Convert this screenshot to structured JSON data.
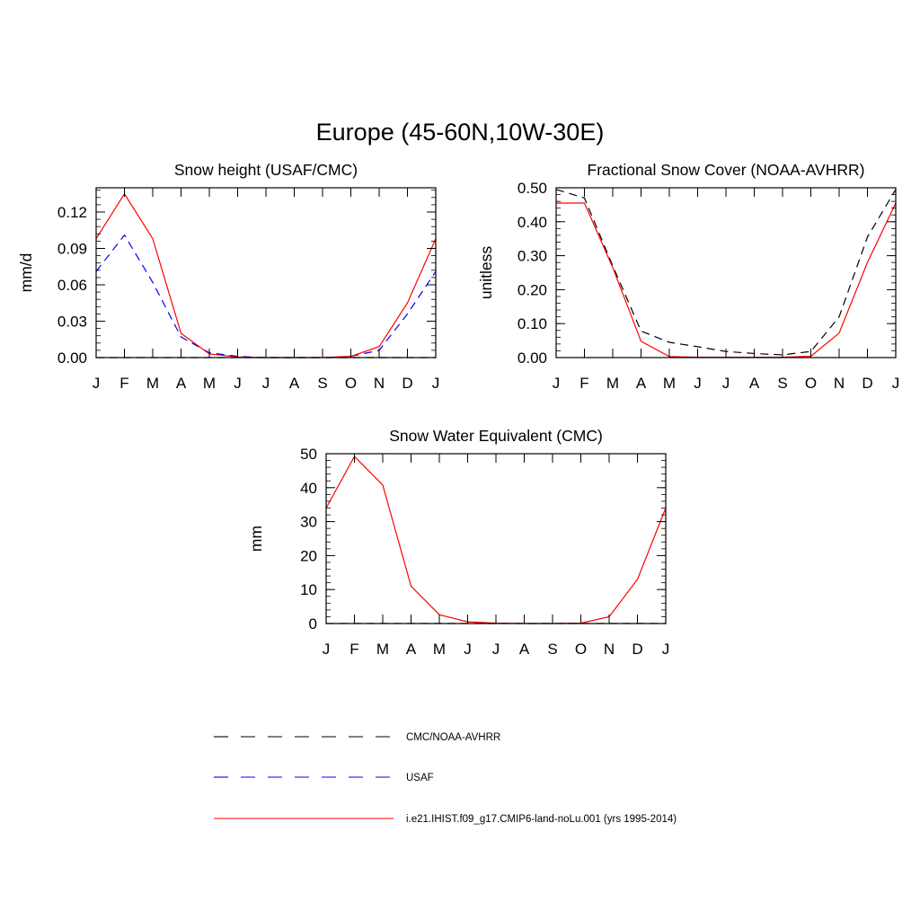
{
  "figure": {
    "title": "Europe (45-60N,10W-30E)"
  },
  "chart_data": [
    {
      "type": "line",
      "title": "Snow height (USAF/CMC)",
      "xlabel": "",
      "ylabel": "mm/d",
      "categories": [
        "J",
        "F",
        "M",
        "A",
        "M",
        "J",
        "J",
        "A",
        "S",
        "O",
        "N",
        "D",
        "J"
      ],
      "ylim": [
        0,
        0.14
      ],
      "yticks": [
        0.0,
        0.03,
        0.06,
        0.09,
        0.12
      ],
      "ytick_labels": [
        "0.00",
        "0.03",
        "0.06",
        "0.09",
        "0.12"
      ],
      "series": [
        {
          "name": "CMC/NOAA-AVHRR",
          "color": "#000000",
          "dash": "dashed",
          "values": [
            0,
            0,
            0,
            0,
            0,
            0,
            0,
            0,
            0,
            0,
            0,
            0,
            0
          ]
        },
        {
          "name": "USAF",
          "color": "#0000ff",
          "dash": "dashed",
          "values": [
            0.071,
            0.101,
            0.062,
            0.017,
            0.004,
            0.001,
            0,
            0,
            0,
            0.001,
            0.006,
            0.036,
            0.071
          ]
        },
        {
          "name": "i.e21.IHIST.f09_g17.CMIP6-land-noLu.001 (yrs 1995-2014)",
          "color": "#ff0000",
          "dash": "solid",
          "values": [
            0.098,
            0.135,
            0.098,
            0.02,
            0.003,
            0.0005,
            0,
            0,
            0,
            0.001,
            0.009,
            0.045,
            0.098
          ]
        }
      ]
    },
    {
      "type": "line",
      "title": "Fractional Snow Cover (NOAA-AVHRR)",
      "xlabel": "",
      "ylabel": "unitless",
      "categories": [
        "J",
        "F",
        "M",
        "A",
        "M",
        "J",
        "J",
        "A",
        "S",
        "O",
        "N",
        "D",
        "J"
      ],
      "ylim": [
        0,
        0.5
      ],
      "yticks": [
        0.0,
        0.1,
        0.2,
        0.3,
        0.4,
        0.5
      ],
      "ytick_labels": [
        "0.00",
        "0.10",
        "0.20",
        "0.30",
        "0.40",
        "0.50"
      ],
      "series": [
        {
          "name": "CMC/NOAA-AVHRR",
          "color": "#000000",
          "dash": "dashed",
          "values": [
            0.495,
            0.47,
            0.27,
            0.078,
            0.045,
            0.032,
            0.018,
            0.012,
            0.008,
            0.018,
            0.12,
            0.355,
            0.495
          ]
        },
        {
          "name": "i.e21.IHIST.f09_g17.CMIP6-land-noLu.001 (yrs 1995-2014)",
          "color": "#ff0000",
          "dash": "solid",
          "values": [
            0.455,
            0.455,
            0.265,
            0.048,
            0.003,
            0.001,
            0.001,
            0.001,
            0.001,
            0.004,
            0.072,
            0.28,
            0.455
          ]
        }
      ]
    },
    {
      "type": "line",
      "title": "Snow Water Equivalent (CMC)",
      "xlabel": "",
      "ylabel": "mm",
      "categories": [
        "J",
        "F",
        "M",
        "A",
        "M",
        "J",
        "J",
        "A",
        "S",
        "O",
        "N",
        "D",
        "J"
      ],
      "ylim": [
        0,
        50
      ],
      "yticks": [
        0,
        10,
        20,
        30,
        40,
        50
      ],
      "ytick_labels": [
        "0",
        "10",
        "20",
        "30",
        "40",
        "50"
      ],
      "series": [
        {
          "name": "CMC/NOAA-AVHRR",
          "color": "#000000",
          "dash": "dashed",
          "values": [
            0,
            0,
            0,
            0,
            0,
            0,
            0,
            0,
            0,
            0,
            0,
            0,
            0
          ]
        },
        {
          "name": "i.e21.IHIST.f09_g17.CMIP6-land-noLu.001 (yrs 1995-2014)",
          "color": "#ff0000",
          "dash": "solid",
          "values": [
            34,
            49.2,
            40.8,
            11,
            2.6,
            0.5,
            0.1,
            0,
            0,
            0.1,
            2,
            13,
            34
          ]
        }
      ]
    }
  ],
  "legend": {
    "items": [
      {
        "label": "CMC/NOAA-AVHRR",
        "color": "#000000",
        "dash": "dashed"
      },
      {
        "label": "USAF",
        "color": "#0000ff",
        "dash": "dashed"
      },
      {
        "label": "i.e21.IHIST.f09_g17.CMIP6-land-noLu.001 (yrs 1995-2014)",
        "color": "#ff0000",
        "dash": "solid"
      }
    ]
  }
}
